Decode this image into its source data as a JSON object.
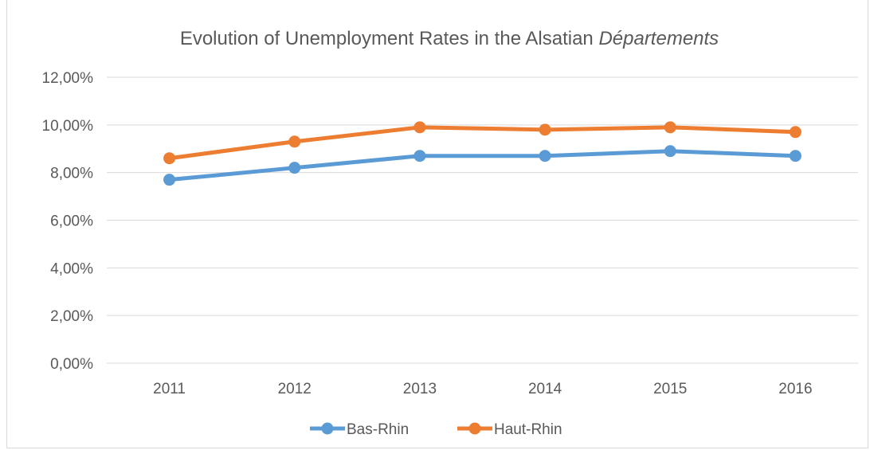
{
  "chart_data": {
    "type": "line",
    "title_prefix": "Evolution of Unemployment Rates in the Alsatian ",
    "title_italic": "Départements",
    "categories": [
      "2011",
      "2012",
      "2013",
      "2014",
      "2015",
      "2016"
    ],
    "series": [
      {
        "name": "Bas-Rhin",
        "color": "#5b9bd5",
        "values": [
          7.7,
          8.2,
          8.7,
          8.7,
          8.9,
          8.7
        ]
      },
      {
        "name": "Haut-Rhin",
        "color": "#ed7d31",
        "values": [
          8.6,
          9.3,
          9.9,
          9.8,
          9.9,
          9.7
        ]
      }
    ],
    "y_ticks": [
      "0,00%",
      "2,00%",
      "4,00%",
      "6,00%",
      "8,00%",
      "10,00%",
      "12,00%"
    ],
    "ylim": [
      0,
      12
    ],
    "grid": true,
    "legend_position": "bottom",
    "gridline_color": "#d9d9d9",
    "text_color": "#595959"
  }
}
